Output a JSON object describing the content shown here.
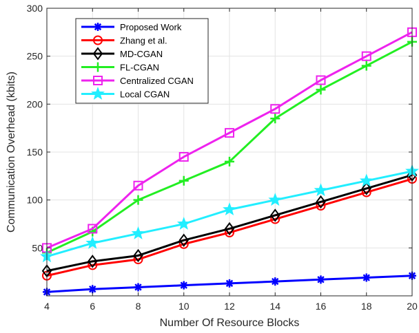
{
  "chart_data": {
    "type": "line",
    "x": [
      4,
      6,
      8,
      10,
      12,
      14,
      16,
      18,
      20
    ],
    "xlabel": "Number Of Resource Blocks",
    "ylabel": "Communication Overhead (kbits)",
    "xlim": [
      4,
      20
    ],
    "ylim": [
      0,
      300
    ],
    "xticks": [
      "4",
      "6",
      "8",
      "10",
      "12",
      "14",
      "16",
      "18",
      "20"
    ],
    "yticks": [
      "50",
      "100",
      "150",
      "200",
      "250",
      "300"
    ],
    "grid": true,
    "legend_position": "top-left",
    "series": [
      {
        "name": "Proposed Work",
        "color": "#0000ff",
        "marker": "asterisk",
        "values": [
          4,
          7,
          9,
          11,
          13,
          15,
          17,
          19,
          21
        ]
      },
      {
        "name": "Zhang et al.",
        "color": "#ff0000",
        "marker": "circle",
        "values": [
          21,
          32,
          38,
          54,
          66,
          80,
          94,
          108,
          122
        ]
      },
      {
        "name": "MD-CGAN",
        "color": "#000000",
        "marker": "diamond",
        "values": [
          26,
          36,
          42,
          58,
          70,
          84,
          98,
          112,
          126
        ]
      },
      {
        "name": "FL-CGAN",
        "color": "#22ee22",
        "marker": "plus",
        "values": [
          45,
          67,
          100,
          120,
          140,
          185,
          215,
          240,
          265
        ]
      },
      {
        "name": "Centralized CGAN",
        "color": "#ee22ee",
        "marker": "square",
        "values": [
          50,
          70,
          115,
          145,
          170,
          195,
          225,
          250,
          275
        ]
      },
      {
        "name": "Local CGAN",
        "color": "#22eeff",
        "marker": "star",
        "values": [
          41,
          55,
          65,
          75,
          90,
          100,
          110,
          120,
          130
        ]
      }
    ]
  }
}
